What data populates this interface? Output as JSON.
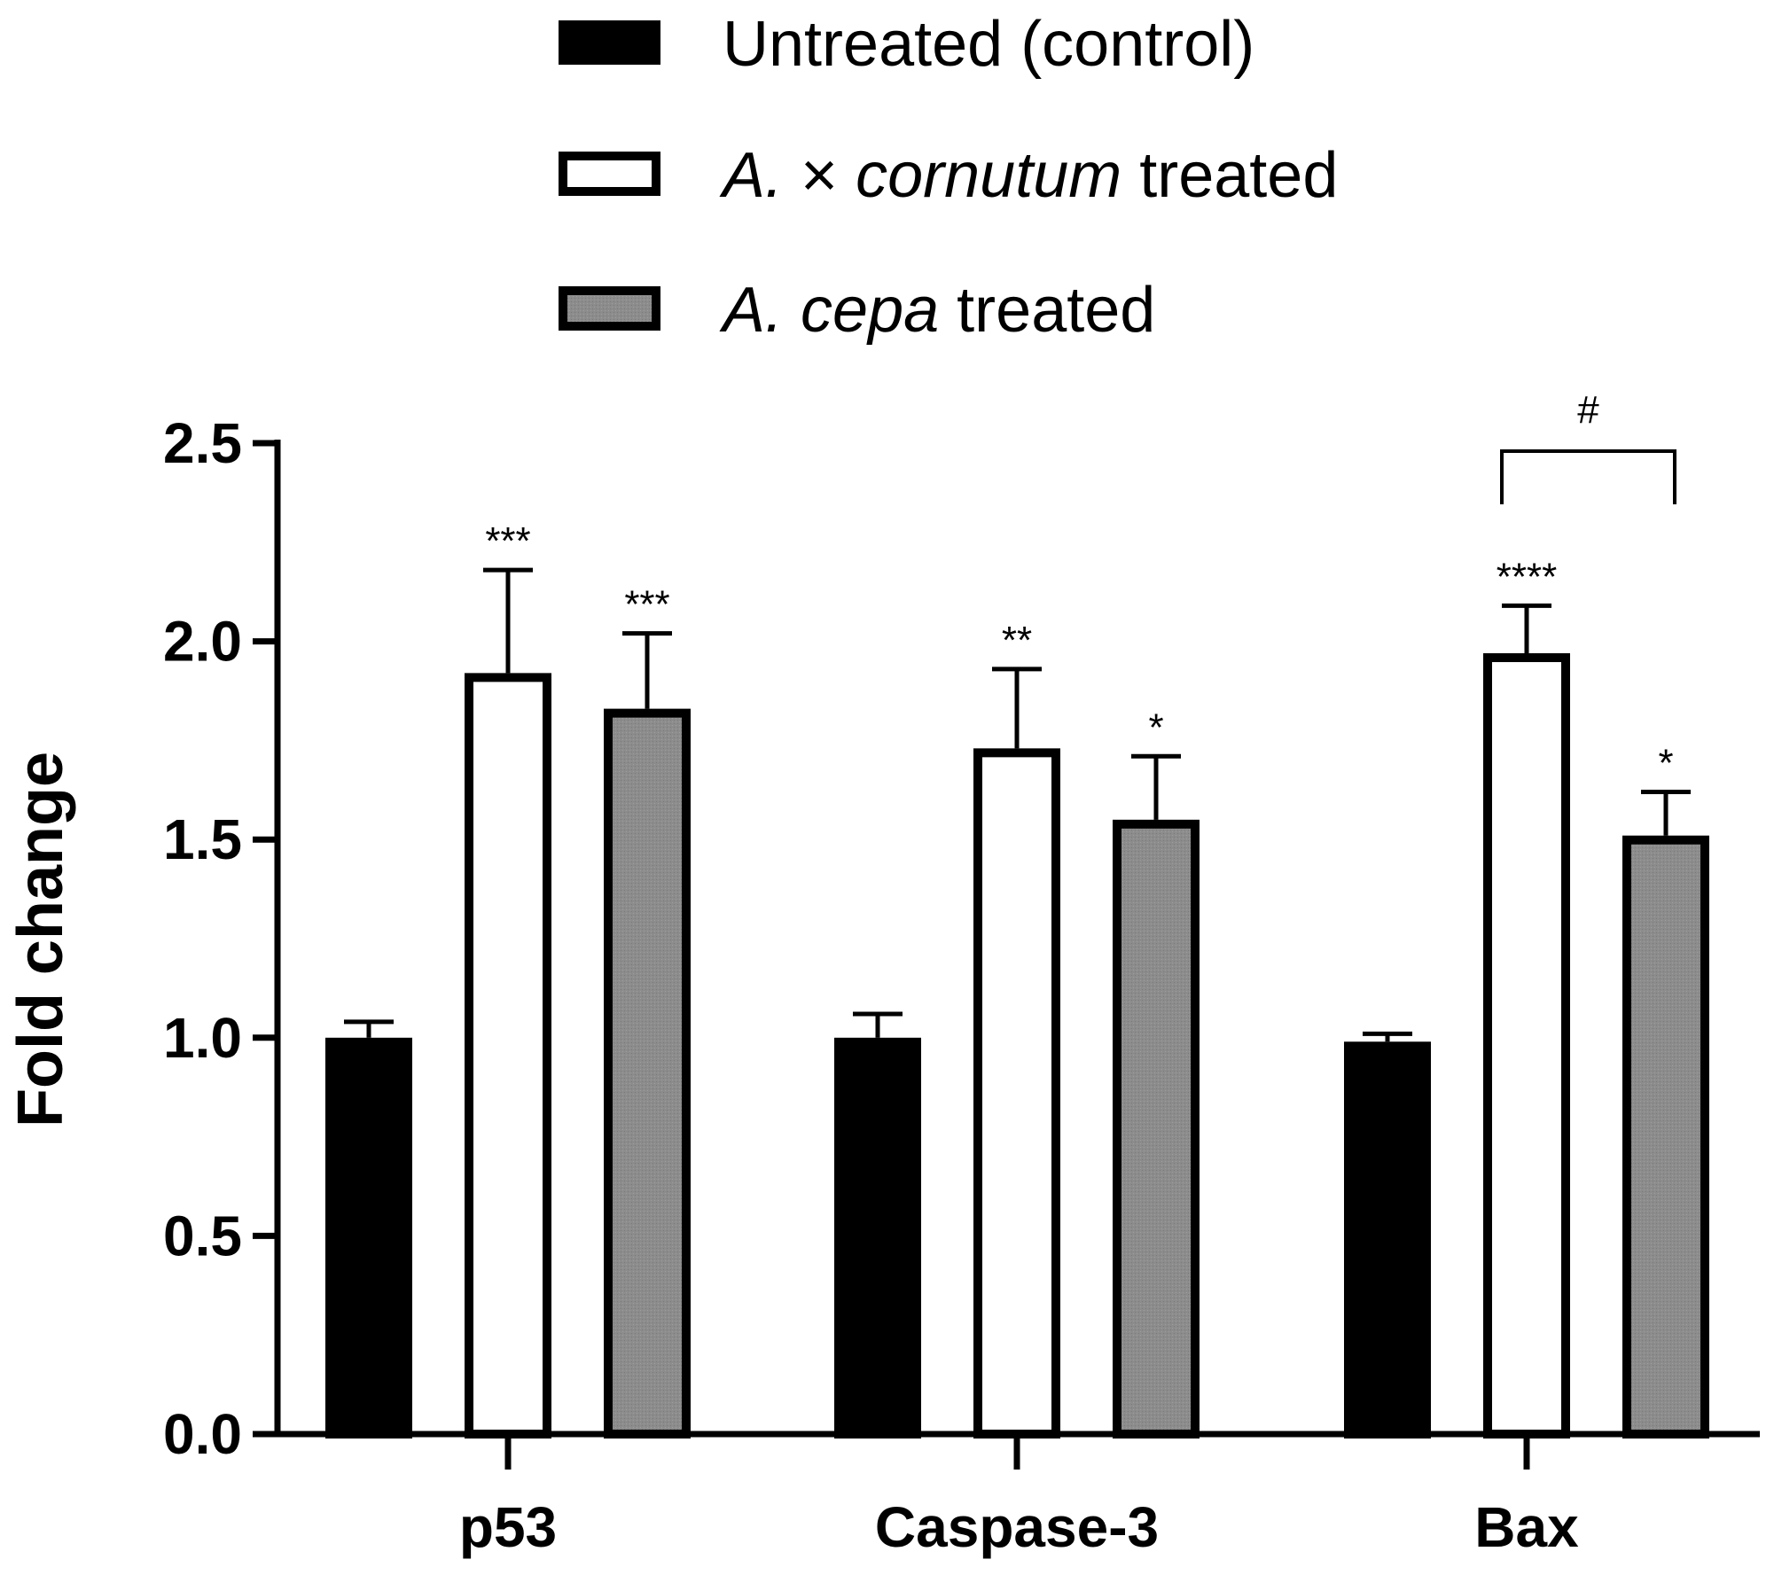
{
  "chart_data": {
    "type": "bar",
    "categories": [
      "p53",
      "Caspase-3",
      "Bax"
    ],
    "ylabel": "Fold change",
    "ylim": [
      0,
      2.5
    ],
    "yticks": [
      "0.0",
      "0.5",
      "1.0",
      "1.5",
      "2.0",
      "2.5"
    ],
    "legend": {
      "placement": "top"
    },
    "series": [
      {
        "name_parts": [
          {
            "text": "Untreated (control)",
            "italic": false
          }
        ],
        "fill": "#000000",
        "values": [
          1.0,
          1.0,
          0.99
        ],
        "errors": [
          0.04,
          0.06,
          0.02
        ],
        "significance": [
          "",
          "",
          ""
        ]
      },
      {
        "name_parts": [
          {
            "text": "A. ",
            "italic": true
          },
          {
            "text": "× ",
            "italic": false
          },
          {
            "text": "cornutum",
            "italic": true
          },
          {
            "text": " treated",
            "italic": false
          }
        ],
        "fill": "#ffffff",
        "values": [
          1.92,
          1.73,
          1.97
        ],
        "errors": [
          0.26,
          0.2,
          0.12
        ],
        "significance": [
          "***",
          "**",
          "****"
        ]
      },
      {
        "name_parts": [
          {
            "text": "A. cepa",
            "italic": true
          },
          {
            "text": " treated",
            "italic": false
          }
        ],
        "fill": "#8c8c8c",
        "values": [
          1.83,
          1.55,
          1.51
        ],
        "errors": [
          0.19,
          0.16,
          0.11
        ],
        "significance": [
          "***",
          "*",
          "*"
        ]
      }
    ],
    "comparisons": [
      {
        "category": "Bax",
        "from_series": 1,
        "to_series": 2,
        "label": "#",
        "y": 2.48
      }
    ],
    "colors": {
      "axis": "#000000",
      "bar_edge": "#000000"
    }
  }
}
